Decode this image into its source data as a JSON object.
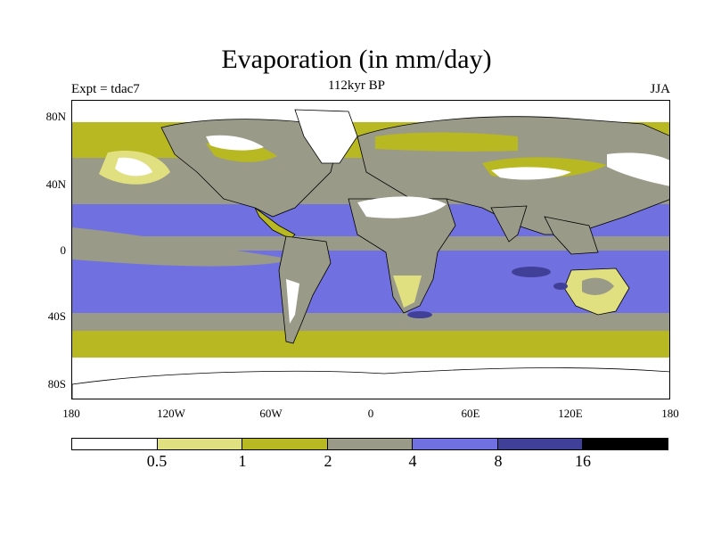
{
  "title": "Evaporation (in mm/day)",
  "subtitle": "112kyr BP",
  "experiment": "Expt = tdac7",
  "season": "JJA",
  "y_axis_labels": [
    "80N",
    "40N",
    "0",
    "40S",
    "80S"
  ],
  "x_axis_labels": [
    "180",
    "120W",
    "60W",
    "0",
    "60E",
    "120E",
    "180"
  ],
  "colorbar": {
    "colors": [
      "#ffffff",
      "#e0e080",
      "#b8b822",
      "#9a9a88",
      "#7070e0",
      "#404098",
      "#000000"
    ],
    "labels": [
      "0.5",
      "1",
      "2",
      "4",
      "8",
      "16"
    ]
  }
}
